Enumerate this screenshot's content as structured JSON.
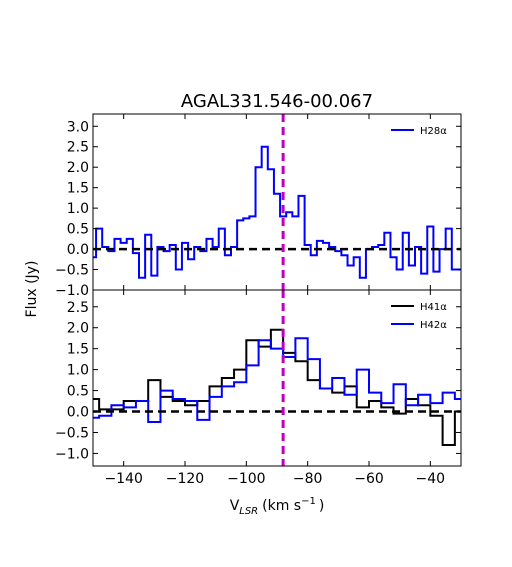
{
  "chart_data": [
    {
      "type": "line",
      "drawstyle": "steps-mid",
      "title": "AGAL331.546-00.067",
      "xlabel": "",
      "ylabel": "Flux (Jy)",
      "xlim": [
        -150,
        -30
      ],
      "ylim": [
        -1.0,
        3.3
      ],
      "yticks": [
        3.0,
        2.5,
        2.0,
        1.5,
        1.0,
        0.5,
        0.0,
        -0.5,
        -1.0
      ],
      "ytick_labels": [
        "3.0",
        "2.5",
        "2.0",
        "1.5",
        "1.0",
        "0.5",
        "0.0",
        "−0.5",
        "−1.0"
      ],
      "reference_line": {
        "y": 0,
        "style": "dashed",
        "color": "#000000"
      },
      "vertical_line": {
        "x": -88,
        "style": "dashed",
        "color": "#bf00bf"
      },
      "legend": "top-right",
      "series": [
        {
          "name": "H28α",
          "color": "#0000ff",
          "x": [
            -150,
            -148,
            -146,
            -144,
            -142,
            -140,
            -138,
            -136,
            -134,
            -132,
            -130,
            -128,
            -126,
            -124,
            -122,
            -120,
            -118,
            -116,
            -114,
            -112,
            -110,
            -108,
            -106,
            -104,
            -102,
            -100,
            -98,
            -96,
            -94,
            -92,
            -90,
            -88,
            -86,
            -84,
            -82,
            -80,
            -78,
            -76,
            -74,
            -72,
            -70,
            -68,
            -66,
            -64,
            -62,
            -60,
            -58,
            -56,
            -54,
            -52,
            -50,
            -48,
            -46,
            -44,
            -42,
            -40,
            -38,
            -36,
            -34,
            -32,
            -30
          ],
          "y": [
            -0.2,
            0.5,
            0.05,
            -0.05,
            0.25,
            0.15,
            0.25,
            -0.1,
            -0.7,
            0.35,
            -0.65,
            0.05,
            -0.05,
            0.1,
            -0.5,
            0.15,
            -0.25,
            0.05,
            -0.05,
            0.25,
            0.05,
            0.5,
            -0.15,
            0.05,
            0.7,
            0.75,
            0.8,
            2.0,
            2.5,
            1.95,
            1.35,
            0.8,
            0.9,
            0.8,
            1.3,
            0.1,
            -0.15,
            0.2,
            0.15,
            0.05,
            -0.05,
            -0.15,
            -0.4,
            -0.2,
            -0.7,
            0.0,
            0.05,
            0.1,
            0.4,
            -0.2,
            -0.5,
            0.4,
            -0.4,
            0.05,
            -0.6,
            0.55,
            -0.55,
            0.0,
            0.5,
            -0.5,
            -0.5
          ]
        }
      ]
    },
    {
      "type": "line",
      "drawstyle": "steps-mid",
      "title": "",
      "xlabel": "Vₗₛᵣ (km s⁻¹)",
      "xlabel_main": "V",
      "xlabel_sub": "LSR",
      "xlabel_unit": "(km s",
      "xlabel_sup": "−1",
      "xlabel_close": ")",
      "ylabel": "Flux (Jy)",
      "xlim": [
        -150,
        -30
      ],
      "ylim": [
        -1.3,
        2.9
      ],
      "xticks": [
        -140,
        -120,
        -100,
        -80,
        -60,
        -40
      ],
      "xtick_labels": [
        "−140",
        "−120",
        "−100",
        "−80",
        "−60",
        "−40"
      ],
      "yticks": [
        2.5,
        2.0,
        1.5,
        1.0,
        0.5,
        0.0,
        -0.5,
        -1.0
      ],
      "ytick_labels": [
        "2.5",
        "2.0",
        "1.5",
        "1.0",
        "0.5",
        "0.0",
        "−0.5",
        "−1.0"
      ],
      "reference_line": {
        "y": 0,
        "style": "dashed",
        "color": "#000000"
      },
      "vertical_line": {
        "x": -88,
        "style": "dashed",
        "color": "#bf00bf"
      },
      "legend": "top-right",
      "series": [
        {
          "name": "H41α",
          "color": "#000000",
          "x": [
            -150,
            -146,
            -142,
            -138,
            -134,
            -130,
            -126,
            -122,
            -118,
            -114,
            -110,
            -106,
            -102,
            -98,
            -94,
            -90,
            -86,
            -82,
            -78,
            -74,
            -70,
            -66,
            -62,
            -58,
            -54,
            -50,
            -46,
            -42,
            -38,
            -34,
            -30
          ],
          "y": [
            0.3,
            0.05,
            0.05,
            0.25,
            0.25,
            0.75,
            0.35,
            0.25,
            0.15,
            0.25,
            0.6,
            0.8,
            1.0,
            1.7,
            1.55,
            1.95,
            1.4,
            1.2,
            0.75,
            0.55,
            0.45,
            0.6,
            0.1,
            0.25,
            0.1,
            -0.05,
            0.3,
            0.15,
            -0.1,
            -0.8,
            0.0
          ]
        },
        {
          "name": "H42α",
          "color": "#0000ff",
          "x": [
            -150,
            -146,
            -142,
            -138,
            -134,
            -130,
            -126,
            -122,
            -118,
            -114,
            -110,
            -106,
            -102,
            -98,
            -94,
            -90,
            -86,
            -82,
            -78,
            -74,
            -70,
            -66,
            -62,
            -58,
            -54,
            -50,
            -46,
            -42,
            -38,
            -34,
            -30
          ],
          "y": [
            -0.15,
            -0.1,
            0.15,
            0.1,
            0.25,
            -0.25,
            0.5,
            0.3,
            0.25,
            -0.2,
            0.35,
            0.6,
            0.7,
            1.1,
            1.7,
            1.5,
            1.3,
            1.75,
            1.25,
            0.55,
            0.8,
            0.4,
            1.0,
            0.45,
            0.2,
            0.65,
            0.15,
            0.4,
            0.2,
            0.45,
            0.3
          ]
        }
      ]
    }
  ]
}
